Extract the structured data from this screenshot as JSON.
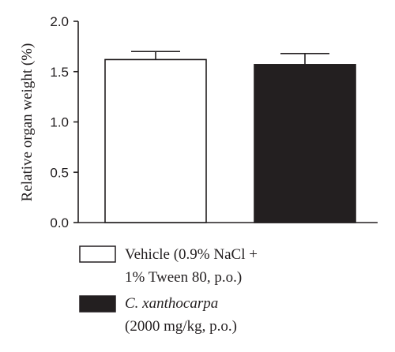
{
  "chart_data": {
    "type": "bar",
    "title": "",
    "xlabel": "",
    "ylabel": "Relative organ weight (%)",
    "ylim": [
      0,
      2.0
    ],
    "yticks": [
      "0.0",
      "0.5",
      "1.0",
      "1.5",
      "2.0"
    ],
    "grid": false,
    "legend_placement": "bottom-left",
    "categories": [
      "Vehicle",
      "C. xanthocarpa"
    ],
    "values": [
      1.62,
      1.57
    ],
    "errors": [
      0.08,
      0.11
    ],
    "colors": [
      "#ffffff",
      "#231f20"
    ],
    "legend": [
      {
        "line1": "Vehicle (0.9% NaCl +",
        "line2": "1% Tween 80, p.o.)",
        "italic_part": "",
        "swatch": "#ffffff"
      },
      {
        "line1": "C. xanthocarpa",
        "line2": "(2000 mg/kg, p.o.)",
        "italic_part": "C. xanthocarpa",
        "swatch": "#231f20"
      }
    ]
  }
}
